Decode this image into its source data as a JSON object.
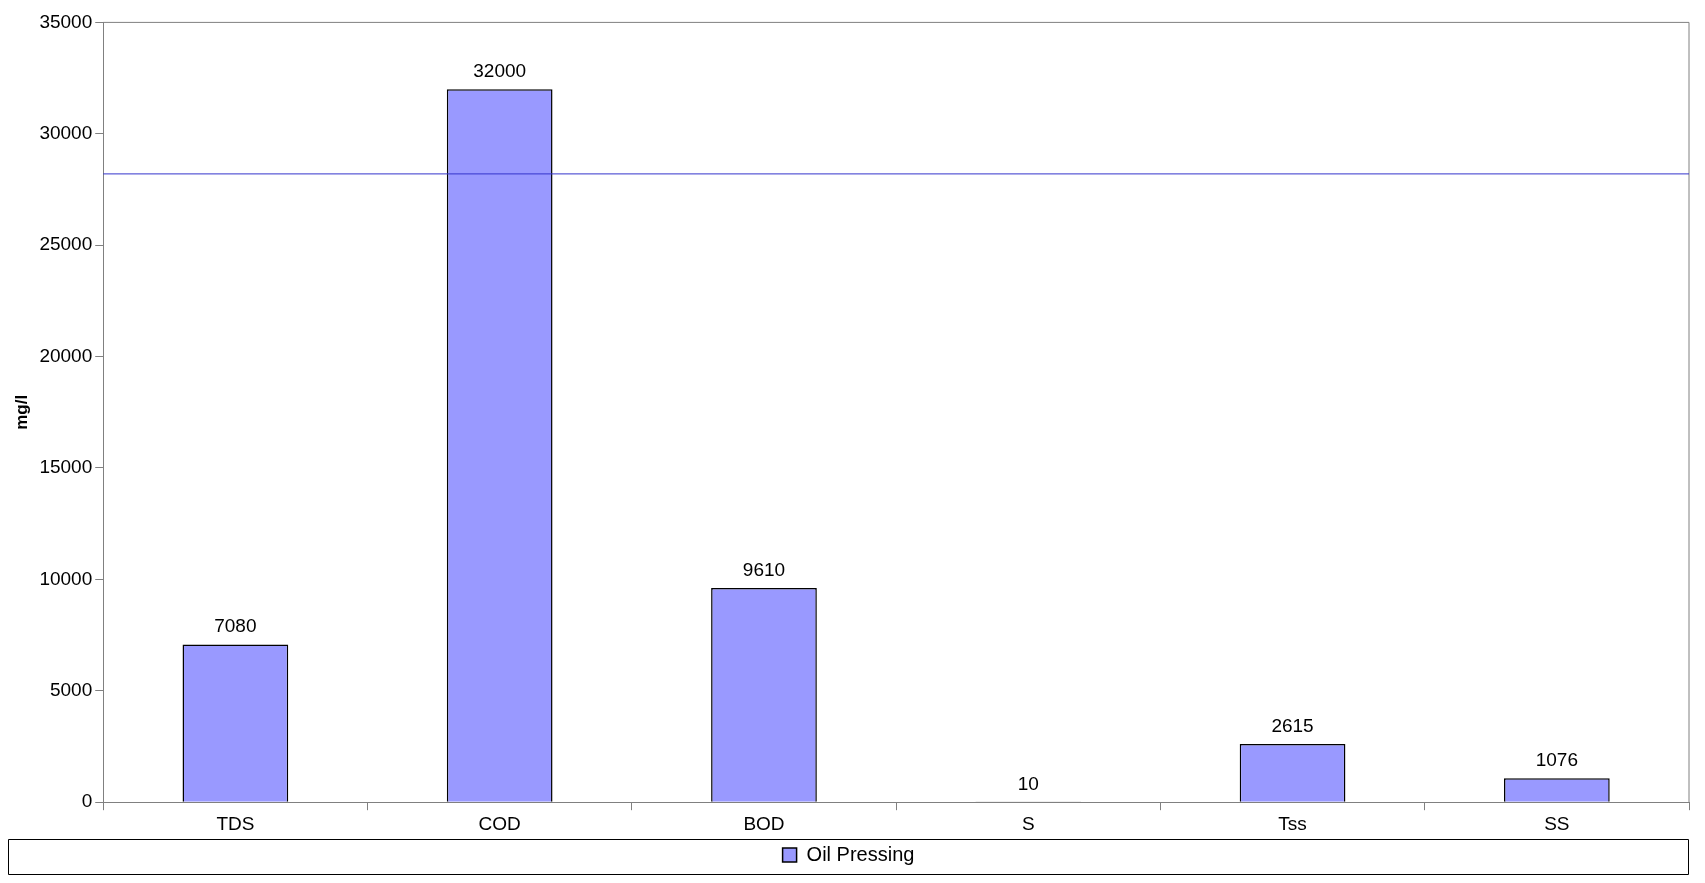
{
  "chart_data": {
    "type": "bar",
    "ylabel": "mg/l",
    "categories": [
      "TDS",
      "COD",
      "BOD",
      "S",
      "Tss",
      "SS"
    ],
    "series": [
      {
        "name": "Oil Pressing",
        "color": "#9999ff",
        "values": [
          7080,
          32000,
          9610,
          10,
          2615,
          1076
        ]
      }
    ],
    "ylim": [
      0,
      35000
    ],
    "yticks": [
      0,
      5000,
      10000,
      15000,
      20000,
      25000,
      30000,
      35000
    ],
    "ref_lines": [
      {
        "axis": "y",
        "value": 28200,
        "color": "#3333cc"
      }
    ],
    "data_labels": true,
    "grid": false,
    "legend": "bottom"
  }
}
